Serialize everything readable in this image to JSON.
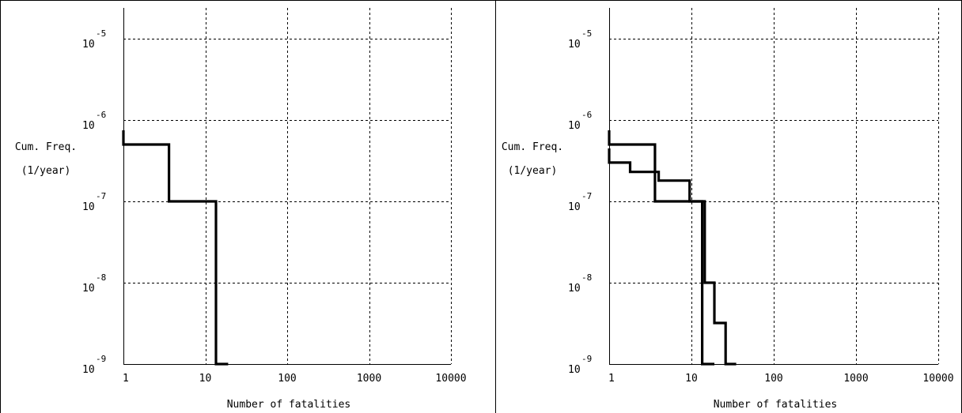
{
  "chart_data": [
    {
      "type": "line",
      "xlabel": "Number of fatalities",
      "ylabel": [
        "Cum. Freq.",
        "(1/year)"
      ],
      "x_scale": "log",
      "y_scale": "log",
      "xlim": [
        1,
        10000
      ],
      "ylim": [
        1e-09,
        1e-05
      ],
      "x_ticks": [
        "1",
        "10",
        "100",
        "1000",
        "10000"
      ],
      "y_ticks": [
        {
          "value": 1e-05,
          "base": "10",
          "exp": "-5"
        },
        {
          "value": 1e-06,
          "base": "10",
          "exp": "-6"
        },
        {
          "value": 1e-07,
          "base": "10",
          "exp": "-7"
        },
        {
          "value": 1e-08,
          "base": "10",
          "exp": "-8"
        },
        {
          "value": 1e-09,
          "base": "10",
          "exp": "-9"
        }
      ],
      "grid": true,
      "series": [
        {
          "color": "#000000",
          "x": [
            1,
            3.6,
            13.5,
            19
          ],
          "y": [
            5e-07,
            1e-07,
            1e-09,
            1e-09
          ]
        }
      ]
    },
    {
      "type": "line",
      "xlabel": "Number of fatalities",
      "ylabel": [
        "Cum. Freq.",
        "(1/year)"
      ],
      "x_scale": "log",
      "y_scale": "log",
      "xlim": [
        1,
        10000
      ],
      "ylim": [
        1e-09,
        1e-05
      ],
      "x_ticks": [
        "1",
        "10",
        "100",
        "1000",
        "10000"
      ],
      "y_ticks": [
        {
          "value": 1e-05,
          "base": "10",
          "exp": "-5"
        },
        {
          "value": 1e-06,
          "base": "10",
          "exp": "-6"
        },
        {
          "value": 1e-07,
          "base": "10",
          "exp": "-7"
        },
        {
          "value": 1e-08,
          "base": "10",
          "exp": "-8"
        },
        {
          "value": 1e-09,
          "base": "10",
          "exp": "-9"
        }
      ],
      "grid": true,
      "series": [
        {
          "color": "#000000",
          "x": [
            1,
            3.6,
            13.5,
            19
          ],
          "y": [
            5e-07,
            1e-07,
            1e-09,
            1e-09
          ]
        },
        {
          "color": "#000000",
          "x": [
            1,
            1.8,
            4,
            9.5,
            14.5,
            19,
            26,
            35
          ],
          "y": [
            3e-07,
            2.3e-07,
            1.8e-07,
            1e-07,
            1e-08,
            3.2e-09,
            1e-09,
            1e-09
          ]
        }
      ]
    }
  ],
  "colors": {
    "background": "#ffffff",
    "axis": "#000000",
    "grid": "#000000"
  }
}
